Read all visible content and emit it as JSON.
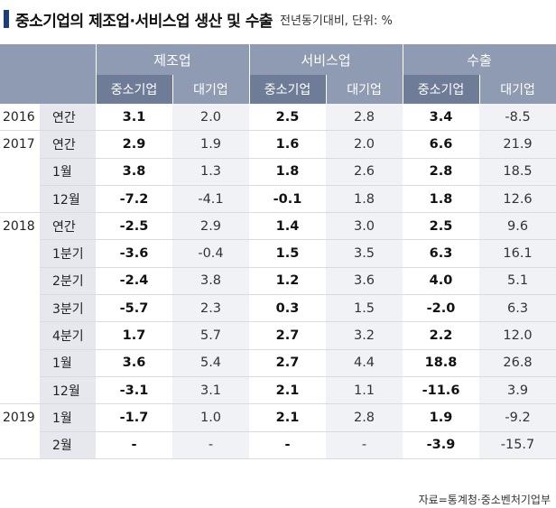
{
  "title": {
    "main": "중소기업의 제조업·서비스업 생산 및 수출",
    "sub": "전년동기대비, 단위: %"
  },
  "groups": [
    "제조업",
    "서비스업",
    "수출"
  ],
  "subheaders": [
    "중소기업",
    "대기업",
    "중소기업",
    "대기업",
    "중소기업",
    "대기업"
  ],
  "rows": [
    {
      "year": "2016",
      "period": "연간",
      "values": [
        "3.1",
        "2.0",
        "2.5",
        "2.8",
        "3.4",
        "-8.5"
      ]
    },
    {
      "year": "2017",
      "period": "연간",
      "values": [
        "2.9",
        "1.9",
        "1.6",
        "2.0",
        "6.6",
        "21.9"
      ]
    },
    {
      "year": "",
      "period": "1월",
      "values": [
        "3.8",
        "1.3",
        "1.8",
        "2.6",
        "2.8",
        "18.5"
      ]
    },
    {
      "year": "",
      "period": "12월",
      "values": [
        "-7.2",
        "-4.1",
        "-0.1",
        "1.8",
        "1.8",
        "12.6"
      ]
    },
    {
      "year": "2018",
      "period": "연간",
      "values": [
        "-2.5",
        "2.9",
        "1.4",
        "3.0",
        "2.5",
        "9.6"
      ]
    },
    {
      "year": "",
      "period": "1분기",
      "values": [
        "-3.6",
        "-0.4",
        "1.5",
        "3.5",
        "6.3",
        "16.1"
      ]
    },
    {
      "year": "",
      "period": "2분기",
      "values": [
        "-2.4",
        "3.8",
        "1.2",
        "3.6",
        "4.0",
        "5.1"
      ]
    },
    {
      "year": "",
      "period": "3분기",
      "values": [
        "-5.7",
        "2.3",
        "0.3",
        "1.5",
        "-2.0",
        "6.3"
      ]
    },
    {
      "year": "",
      "period": "4분기",
      "values": [
        "1.7",
        "5.7",
        "2.7",
        "3.2",
        "2.2",
        "12.0"
      ]
    },
    {
      "year": "",
      "period": "1월",
      "values": [
        "3.6",
        "5.4",
        "2.7",
        "4.4",
        "18.8",
        "26.8"
      ]
    },
    {
      "year": "",
      "period": "12월",
      "values": [
        "-3.1",
        "3.1",
        "2.1",
        "1.1",
        "-11.6",
        "3.9"
      ]
    },
    {
      "year": "2019",
      "period": "1월",
      "values": [
        "-1.7",
        "1.0",
        "2.1",
        "2.8",
        "1.9",
        "-9.2"
      ]
    },
    {
      "year": "",
      "period": "2월",
      "values": [
        "-",
        "-",
        "-",
        "-",
        "-3.9",
        "-15.7"
      ]
    }
  ],
  "source": "자료=통계청·중소벤처기업부"
}
